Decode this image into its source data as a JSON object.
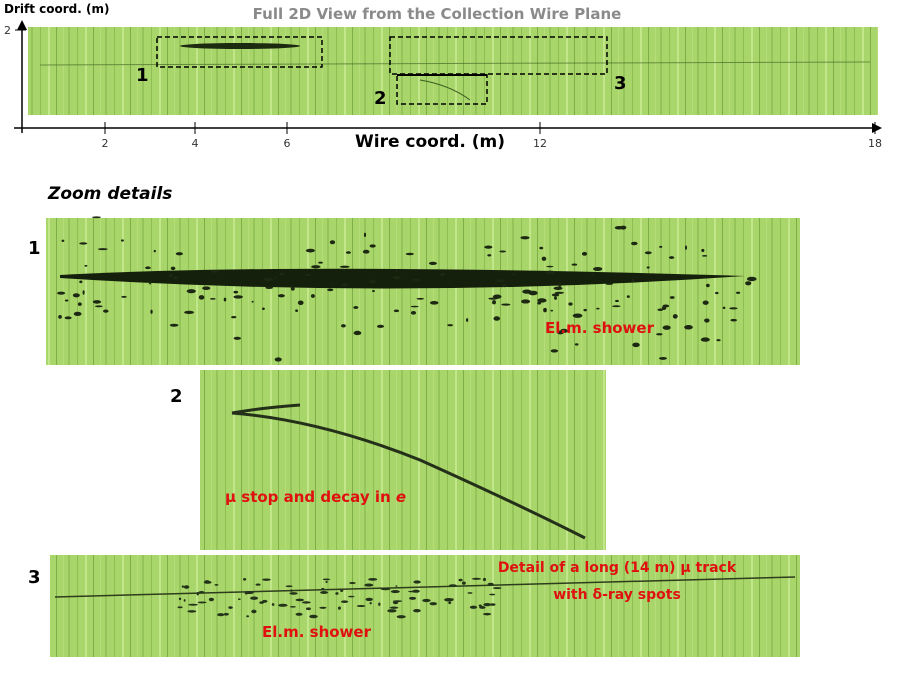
{
  "header": {
    "title": "Full 2D View from the Collection Wire Plane",
    "y_axis_label": "Drift coord. (m)",
    "x_axis_label": "Wire coord. (m)",
    "y_ticks": [
      2
    ],
    "x_ticks": [
      2,
      4,
      6,
      12,
      18
    ]
  },
  "overview": {
    "boxes": [
      {
        "label": "1"
      },
      {
        "label": "2"
      },
      {
        "label": "3"
      }
    ]
  },
  "zoom": {
    "heading": "Zoom details",
    "panels": [
      {
        "label": "1",
        "annotation": "El.m. shower"
      },
      {
        "label": "2",
        "annotation": "μ stop and decay in",
        "particle": "e"
      },
      {
        "label": "3",
        "annotation_lines": [
          "Detail of a long (14 m) μ track",
          "with δ-ray spots"
        ],
        "shower_annotation": "El.m. shower"
      }
    ]
  }
}
